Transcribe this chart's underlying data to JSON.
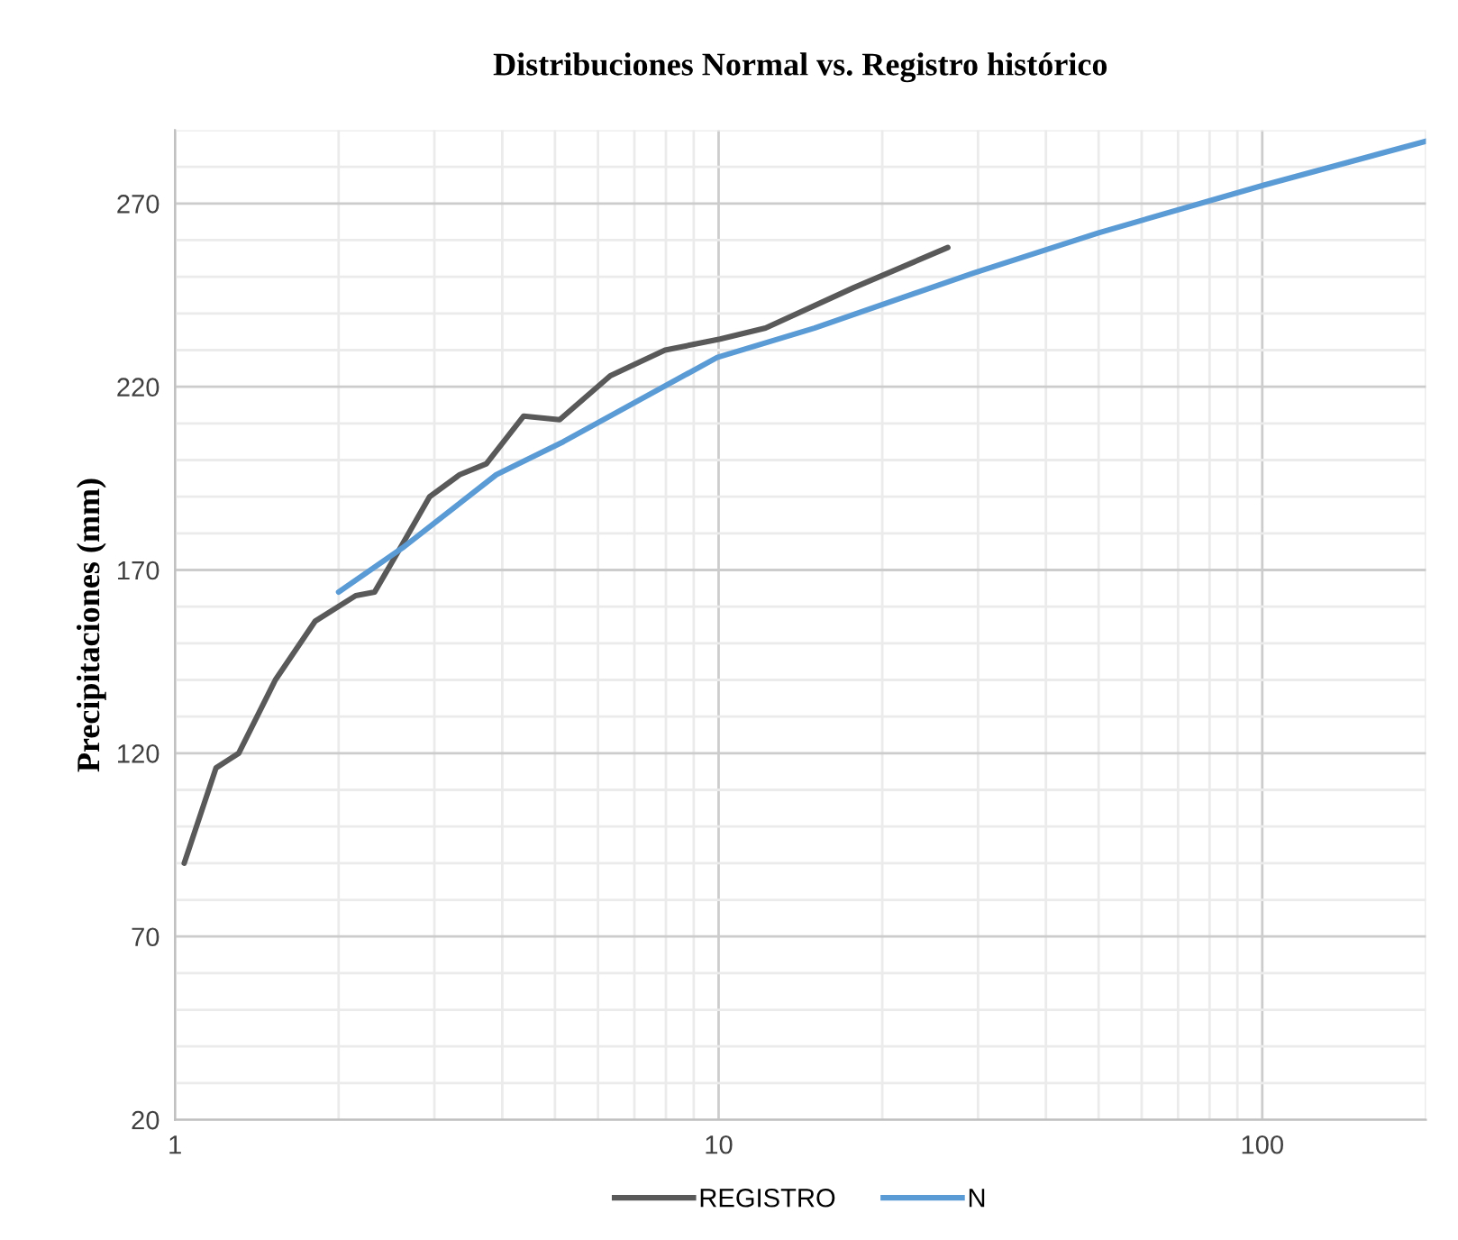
{
  "chart_data": {
    "type": "line",
    "title": "Distribuciones Normal vs. Registro histórico",
    "ylabel": "Precipitaciones (mm)",
    "log": "x",
    "xlim": [
      1,
      200
    ],
    "xticks": [
      1,
      10,
      100
    ],
    "ylim": [
      20,
      290
    ],
    "yticks": [
      20,
      70,
      120,
      170,
      220,
      270
    ],
    "grid": true,
    "legend": "bottom",
    "marker": "none",
    "line_style": "solid",
    "series": [
      {
        "name": "REGISTRO",
        "color": "#595959",
        "x": [
          1.04,
          1.19,
          1.31,
          1.53,
          1.81,
          2.15,
          2.33,
          2.62,
          2.94,
          3.34,
          3.74,
          4.38,
          5.1,
          6.32,
          7.97,
          10.06,
          12.2,
          17.7,
          26.4
        ],
        "values": [
          90,
          116,
          120,
          140,
          156,
          163,
          164,
          177,
          190,
          196,
          199,
          212,
          211,
          223,
          230,
          233,
          236,
          247,
          258
        ]
      },
      {
        "name": "N",
        "color": "#5b9bd5",
        "x": [
          2.0,
          2.62,
          3.9,
          5.18,
          9.94,
          15,
          29.4,
          50,
          100.6,
          200
        ],
        "values": [
          164,
          176,
          196,
          205,
          228,
          236,
          251,
          262,
          275,
          287
        ]
      }
    ]
  }
}
